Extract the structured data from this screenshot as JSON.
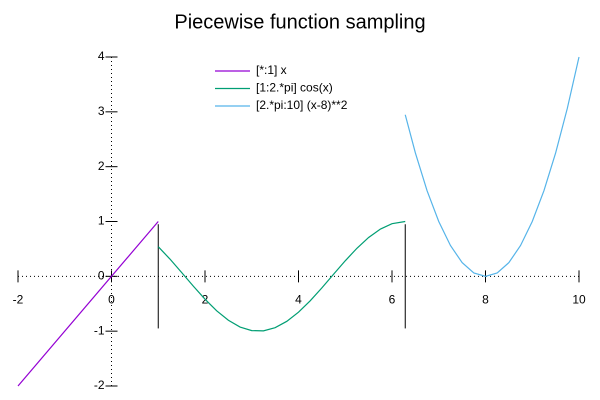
{
  "chart_data": {
    "type": "line",
    "title": "Piecewise function sampling",
    "xlim": [
      -2,
      10
    ],
    "ylim": [
      -2,
      4
    ],
    "xticks": [
      -2,
      0,
      2,
      4,
      6,
      8,
      10
    ],
    "yticks": [
      -2,
      -1,
      0,
      1,
      2,
      3,
      4
    ],
    "zero_axes": true,
    "separators": [
      1,
      6.2832
    ],
    "separator_range": [
      -0.95,
      0.95
    ],
    "series": [
      {
        "name": "[*:1] x",
        "color": "#9400d3",
        "x": [
          -2,
          1
        ],
        "values": [
          -2,
          1
        ]
      },
      {
        "name": "[1:2.*pi] cos(x)",
        "color": "#009e73",
        "x": [
          1,
          1.25,
          1.5,
          1.75,
          2,
          2.25,
          2.5,
          2.75,
          3,
          3.25,
          3.5,
          3.75,
          4,
          4.25,
          4.5,
          4.75,
          5,
          5.25,
          5.5,
          5.75,
          6,
          6.2832
        ],
        "values": [
          0.5403,
          0.3153,
          0.0707,
          -0.1782,
          -0.4161,
          -0.6282,
          -0.8011,
          -0.9243,
          -0.99,
          -0.9941,
          -0.9365,
          -0.8206,
          -0.6536,
          -0.4461,
          -0.2108,
          0.0376,
          0.2837,
          0.5121,
          0.7087,
          0.8612,
          0.9602,
          1
        ]
      },
      {
        "name": "[2.*pi:10] (x-8)**2",
        "color": "#56b4e9",
        "x": [
          6.2832,
          6.5,
          6.75,
          7,
          7.25,
          7.5,
          7.75,
          8,
          8.25,
          8.5,
          8.75,
          9,
          9.25,
          9.5,
          9.75,
          10
        ],
        "values": [
          2.9474,
          2.25,
          1.5625,
          1,
          0.5625,
          0.25,
          0.0625,
          0,
          0.0625,
          0.25,
          0.5625,
          1,
          1.5625,
          2.25,
          3.0625,
          4
        ]
      }
    ]
  }
}
